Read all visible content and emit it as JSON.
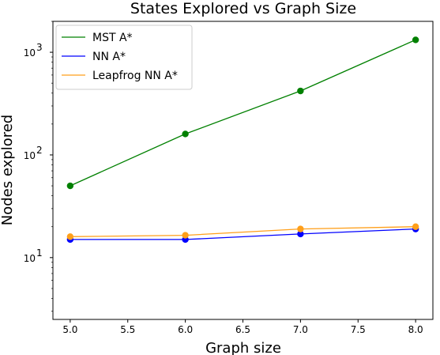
{
  "chart_data": {
    "type": "line",
    "title": "States Explored vs Graph Size",
    "xlabel": "Graph size",
    "ylabel": "Nodes explored",
    "x": [
      5,
      6,
      7,
      8
    ],
    "xlim": [
      4.85,
      8.15
    ],
    "xticks": [
      5.0,
      5.5,
      6.0,
      6.5,
      7.0,
      7.5,
      8.0
    ],
    "xtick_labels": [
      "5.0",
      "5.5",
      "6.0",
      "6.5",
      "7.0",
      "7.5",
      "8.0"
    ],
    "yscale": "log",
    "ylim": [
      2.5,
      2000
    ],
    "yticks": [
      10,
      100,
      1000
    ],
    "ytick_labels": [
      {
        "base": "10",
        "exp": "1"
      },
      {
        "base": "10",
        "exp": "2"
      },
      {
        "base": "10",
        "exp": "3"
      }
    ],
    "grid": false,
    "legend_position": "top-left",
    "series": [
      {
        "name": "MST A*",
        "color": "#008000",
        "values": [
          50,
          160,
          420,
          1320
        ]
      },
      {
        "name": "NN A*",
        "color": "#0000ff",
        "values": [
          15,
          15,
          17,
          19
        ]
      },
      {
        "name": "Leapfrog NN A*",
        "color": "#ff9f1a",
        "values": [
          16,
          16.5,
          19,
          20
        ]
      }
    ]
  }
}
